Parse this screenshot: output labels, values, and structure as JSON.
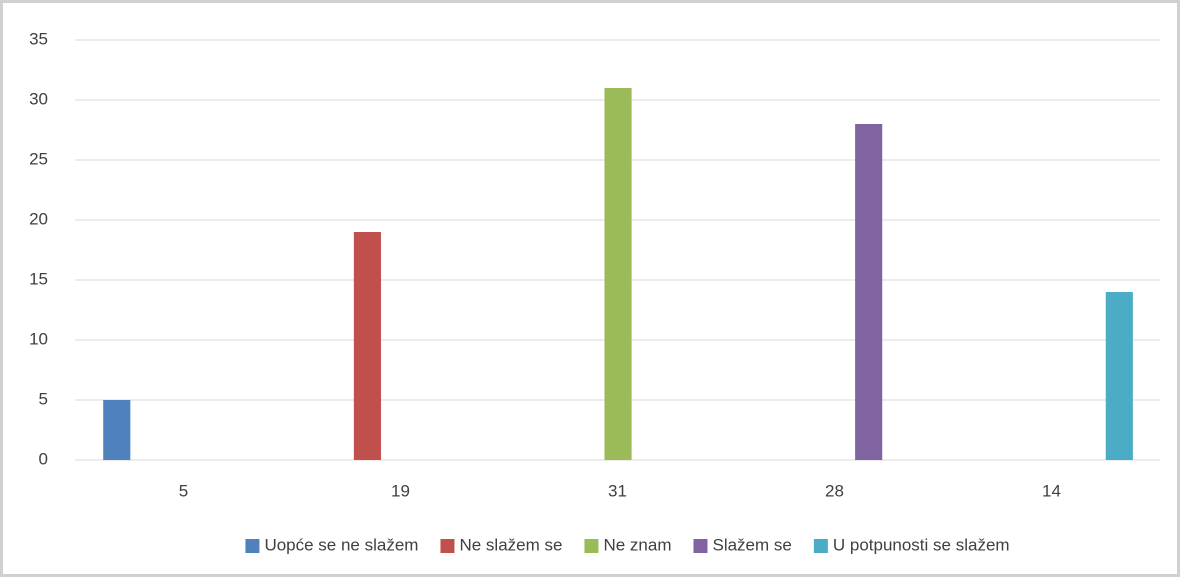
{
  "chart_data": {
    "type": "bar",
    "categories": [
      "5",
      "19",
      "31",
      "28",
      "14"
    ],
    "series": [
      {
        "name": "Uopće se ne slažem",
        "color": "#4f81bd",
        "values": [
          5,
          0,
          0,
          0,
          0
        ]
      },
      {
        "name": "Ne slažem se",
        "color": "#c0504d",
        "values": [
          0,
          19,
          0,
          0,
          0
        ]
      },
      {
        "name": "Ne znam",
        "color": "#9bbb59",
        "values": [
          0,
          0,
          31,
          0,
          0
        ]
      },
      {
        "name": "Slažem se",
        "color": "#8064a2",
        "values": [
          0,
          0,
          0,
          28,
          0
        ]
      },
      {
        "name": "U potpunosti se slažem",
        "color": "#4bacc6",
        "values": [
          0,
          0,
          0,
          0,
          14
        ]
      }
    ],
    "ylim": [
      0,
      35
    ],
    "yticks": [
      0,
      5,
      10,
      15,
      20,
      25,
      30,
      35
    ],
    "grid": true,
    "legend": "bottom"
  }
}
